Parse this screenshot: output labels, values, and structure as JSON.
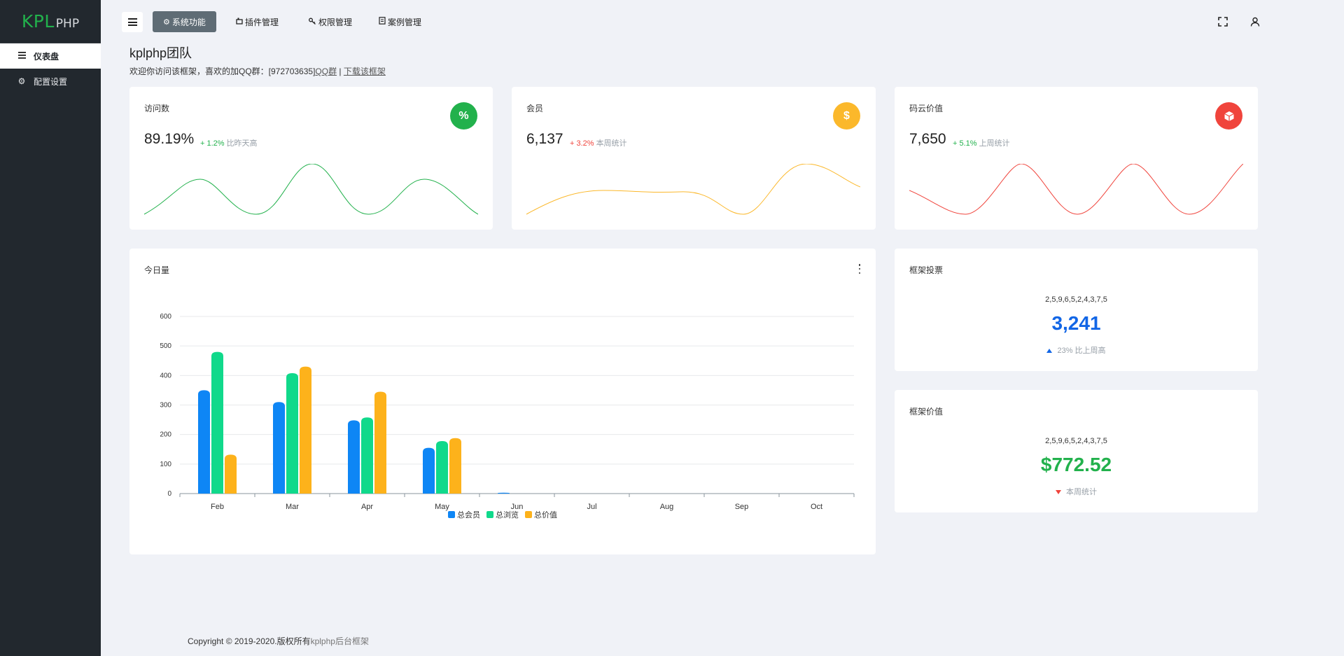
{
  "sidebar": {
    "logo": {
      "main": "KPL",
      "suffix": "PHP"
    },
    "items": [
      {
        "label": "仪表盘",
        "icon": "list-icon",
        "active": true
      },
      {
        "label": "配置设置",
        "icon": "gear-icon",
        "active": false
      }
    ]
  },
  "topbar": {
    "tabs": [
      {
        "label": "系统功能",
        "icon": "gear-icon",
        "active": true
      },
      {
        "label": "插件管理",
        "icon": "plugin-icon",
        "active": false
      },
      {
        "label": "权限管理",
        "icon": "key-icon",
        "active": false
      },
      {
        "label": "案例管理",
        "icon": "document-icon",
        "active": false
      }
    ]
  },
  "header": {
    "title": "kplphp团队",
    "subtitle_prefix": "欢迎你访问该框架，喜欢的加QQ群：[972703635]",
    "qq_link": "QQ群",
    "separator": " | ",
    "download_link": "下载该框架"
  },
  "stats": [
    {
      "label": "访问数",
      "value": "89.19%",
      "delta": "+ 1.2%",
      "note": "比昨天高",
      "trend": "up",
      "color": "#22b14c",
      "icon": "percent-icon",
      "glyph": "%"
    },
    {
      "label": "会员",
      "value": "6,137",
      "delta": "+ 3.2%",
      "note": "本周统计",
      "trend": "down",
      "color": "#fbb82b",
      "icon": "dollar-icon",
      "glyph": "$"
    },
    {
      "label": "码云价值",
      "value": "7,650",
      "delta": "+ 5.1%",
      "note": "上周统计",
      "trend": "up",
      "color": "#f0443c",
      "icon": "cube-icon",
      "glyph": "▣"
    }
  ],
  "chart_data": {
    "type": "bar",
    "title": "今日量",
    "categories": [
      "Feb",
      "Mar",
      "Apr",
      "May",
      "Jun",
      "Jul",
      "Aug",
      "Sep",
      "Oct"
    ],
    "series": [
      {
        "name": "总会员",
        "color": "#0e86f5",
        "values": [
          350,
          310,
          248,
          155,
          3,
          0,
          0,
          0,
          0
        ]
      },
      {
        "name": "总浏览",
        "color": "#10d98b",
        "values": [
          480,
          408,
          258,
          178,
          0,
          0,
          0,
          0,
          0
        ]
      },
      {
        "name": "总价值",
        "color": "#fdb21b",
        "values": [
          132,
          430,
          345,
          188,
          0,
          0,
          0,
          0,
          0
        ]
      }
    ],
    "yticks": [
      0,
      100,
      200,
      300,
      400,
      500,
      600
    ],
    "ylim": [
      0,
      600
    ],
    "grid": true,
    "legend": "bottom"
  },
  "vote_card": {
    "title": "框架投票",
    "sequence": "2,5,9,6,5,2,4,3,7,5",
    "value": "3,241",
    "value_color": "#1266e6",
    "note": "23% 比上周高",
    "trend": "up"
  },
  "value_card": {
    "title": "框架价值",
    "sequence": "2,5,9,6,5,2,4,3,7,5",
    "value": "$772.52",
    "value_color": "#22b14c",
    "note": "本周统计",
    "trend": "down"
  },
  "footer": {
    "copyright": "Copyright © 2019-2020.版权所有",
    "brand": "kplphp后台框架"
  }
}
